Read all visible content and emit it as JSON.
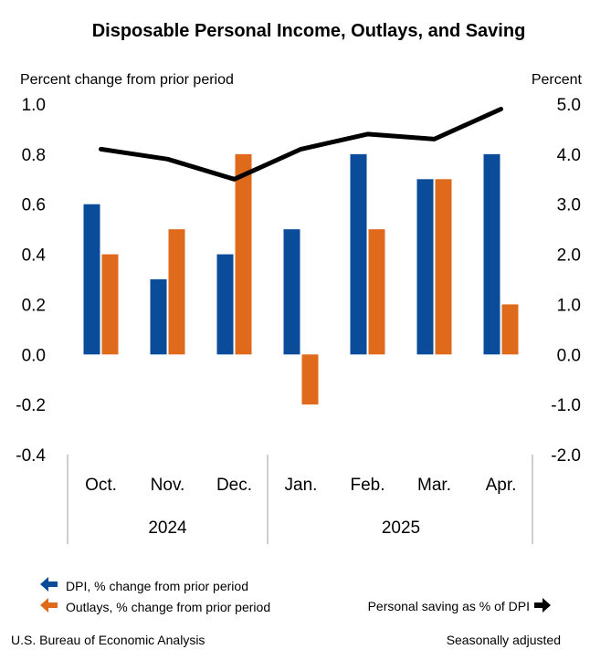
{
  "chart_data": {
    "type": "bar",
    "title": "Disposable Personal Income, Outlays, and Saving",
    "ylabel_left": "Percent change from prior period",
    "ylabel_right": "Percent",
    "ylim_left": [
      -0.4,
      1.0
    ],
    "ylim_right": [
      -2.0,
      5.0
    ],
    "left_ticks": [
      "1.0",
      "0.8",
      "0.6",
      "0.4",
      "0.2",
      "0.0",
      "-0.2",
      "-0.4"
    ],
    "right_ticks": [
      "5.0",
      "4.0",
      "3.0",
      "2.0",
      "1.0",
      "0.0",
      "-1.0",
      "-2.0"
    ],
    "categories": [
      "Oct.",
      "Nov.",
      "Dec.",
      "Jan.",
      "Feb.",
      "Mar.",
      "Apr."
    ],
    "years": [
      {
        "label": "2024",
        "span": [
          0,
          2
        ]
      },
      {
        "label": "2025",
        "span": [
          3,
          6
        ]
      }
    ],
    "series": [
      {
        "name": "DPI, % change from prior period",
        "axis": "left",
        "kind": "bar",
        "color": "#0a4c9a",
        "values": [
          0.6,
          0.3,
          0.4,
          0.5,
          0.8,
          0.7,
          0.8
        ]
      },
      {
        "name": "Outlays, % change from prior period",
        "axis": "left",
        "kind": "bar",
        "color": "#e06a1c",
        "values": [
          0.4,
          0.5,
          0.8,
          -0.2,
          0.5,
          0.7,
          0.2
        ]
      },
      {
        "name": "Personal saving as % of DPI",
        "axis": "right",
        "kind": "line",
        "color": "#000000",
        "values": [
          4.1,
          3.9,
          3.5,
          4.1,
          4.4,
          4.3,
          4.9
        ]
      }
    ],
    "footer_left": "U.S. Bureau of Economic Analysis",
    "footer_right": "Seasonally adjusted"
  }
}
